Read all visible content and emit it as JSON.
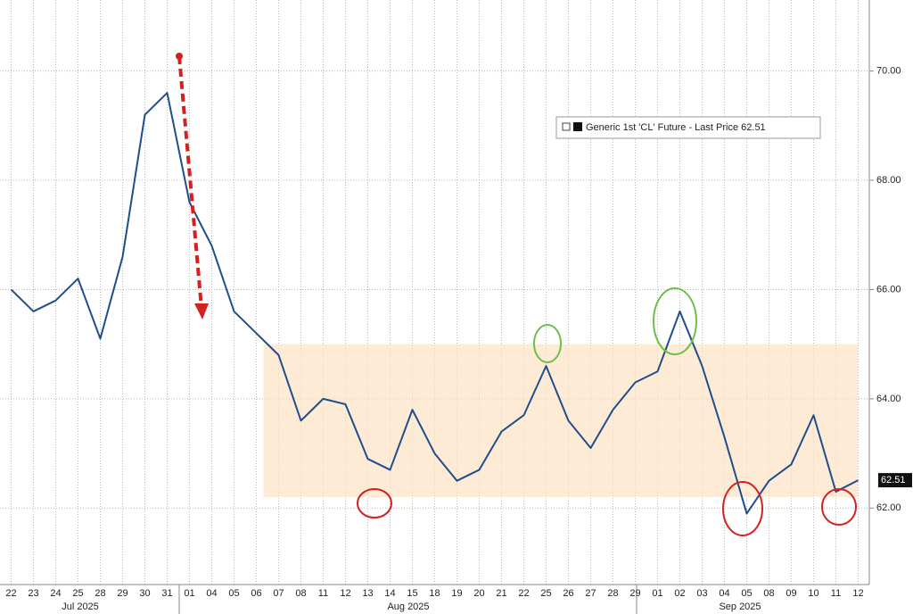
{
  "chart_data": {
    "type": "line",
    "legend_label": "Generic 1st 'CL' Future - Last Price 62.51",
    "categories": [
      "22",
      "23",
      "24",
      "25",
      "28",
      "29",
      "30",
      "31",
      "01",
      "04",
      "05",
      "06",
      "07",
      "08",
      "11",
      "12",
      "13",
      "14",
      "15",
      "18",
      "19",
      "20",
      "21",
      "22",
      "25",
      "26",
      "27",
      "28",
      "29",
      "01",
      "02",
      "03",
      "04",
      "05",
      "08",
      "09",
      "10",
      "11",
      "12"
    ],
    "month_labels": [
      "Jul 2025",
      "Aug 2025",
      "Sep 2025"
    ],
    "series": [
      {
        "name": "Generic 1st 'CL' Future - Last Price",
        "color": "#1f4e8c",
        "values": [
          66.0,
          65.6,
          65.8,
          66.2,
          65.1,
          66.6,
          69.2,
          69.6,
          67.6,
          66.8,
          65.6,
          65.2,
          64.8,
          63.6,
          64.0,
          63.9,
          62.9,
          62.7,
          63.8,
          63.0,
          62.5,
          62.7,
          63.4,
          63.7,
          64.6,
          63.6,
          63.1,
          63.8,
          64.3,
          64.5,
          65.6,
          64.6,
          63.3,
          61.9,
          62.5,
          62.8,
          63.7,
          62.3,
          62.51
        ]
      }
    ],
    "last_price": 62.51,
    "shaded_range": [
      62.2,
      65.0
    ],
    "ylim": [
      60.6,
      71.3
    ],
    "yticks": [
      {
        "value": 62,
        "label": "62.00"
      },
      {
        "value": 64,
        "label": "64.00"
      },
      {
        "value": 66,
        "label": "66.00"
      },
      {
        "value": 68,
        "label": "68.00"
      },
      {
        "value": 70,
        "label": "70.00"
      }
    ],
    "grid": true
  }
}
